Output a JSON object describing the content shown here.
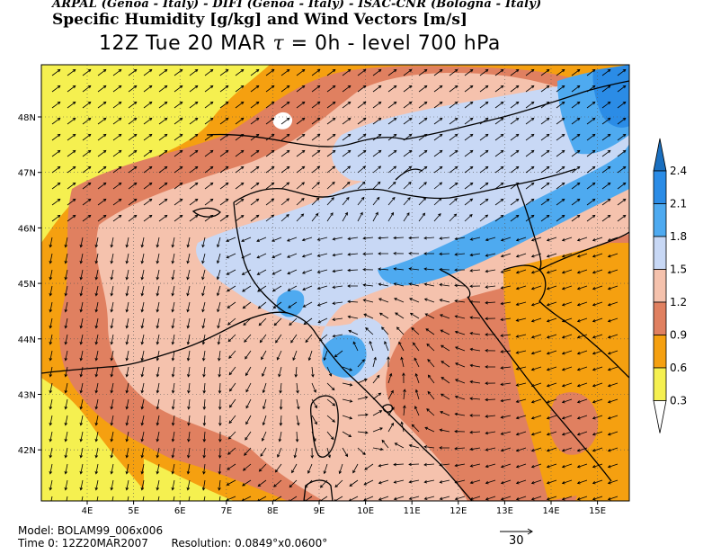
{
  "header": {
    "credits": "ARPAL (Genoa - Italy)  -  DIFI (Genoa - Italy)  -  ISAC-CNR (Bologna - Italy)",
    "title": "Specific Humidity [g/kg] and Wind Vectors [m/s]",
    "subtitle_prefix": "12Z Tue 20 MAR",
    "subtitle_tau": "τ",
    "subtitle_suffix": "= 0h   -   level 700 hPa"
  },
  "map": {
    "lon_labels": [
      "4E",
      "5E",
      "6E",
      "7E",
      "8E",
      "9E",
      "10E",
      "11E",
      "12E",
      "13E",
      "14E",
      "15E"
    ],
    "lat_labels": [
      "48N",
      "47N",
      "46N",
      "45N",
      "44N",
      "43N",
      "42N"
    ]
  },
  "colorbar": {
    "labels": [
      "2.4",
      "2.1",
      "1.8",
      "1.5",
      "1.2",
      "0.9",
      "0.6",
      "0.3"
    ],
    "colors": [
      "#1a6fbf",
      "#2b8ce6",
      "#4eaaf0",
      "#c8d8f5",
      "#f5c2ad",
      "#e08060",
      "#f5a010",
      "#f5f050"
    ]
  },
  "colors": {
    "yellow": "#f5f050",
    "orange": "#f5a010",
    "rust": "#e08060",
    "peach": "#f5c2ad",
    "lavender": "#c8d8f5",
    "lightblue": "#4eaaf0",
    "blue": "#2b8ce6",
    "darkblue": "#1a6fbf"
  },
  "footer": {
    "model_label": "Model:",
    "model_value": "BOLAM99_006x006",
    "time_label": "Time 0:",
    "time_value": "12Z20MAR2007",
    "resolution_label": "Resolution:",
    "resolution_value": "0.0849°x0.0600°",
    "wind_ref": "30"
  }
}
